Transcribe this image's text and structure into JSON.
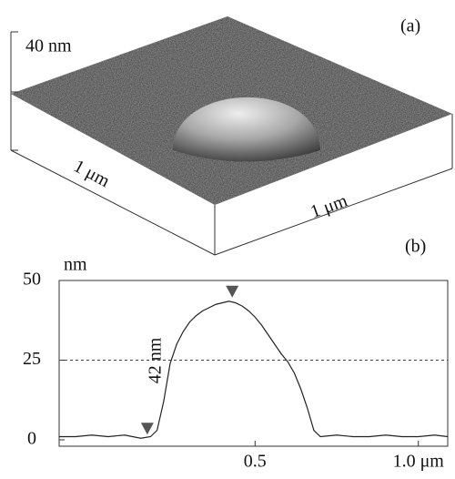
{
  "panel_a": {
    "label": "(a)",
    "z_scale": "40 nm",
    "left_scale": "1 μm",
    "right_scale": "1 μm"
  },
  "chart_data": {
    "type": "line",
    "panel_label": "(b)",
    "y_label": "nm",
    "annotation": "42 nm",
    "x": [
      -0.1,
      -0.05,
      0,
      0.05,
      0.1,
      0.15,
      0.18,
      0.2,
      0.22,
      0.24,
      0.26,
      0.28,
      0.3,
      0.32,
      0.34,
      0.36,
      0.38,
      0.4,
      0.42,
      0.44,
      0.46,
      0.48,
      0.5,
      0.52,
      0.54,
      0.56,
      0.58,
      0.6,
      0.62,
      0.64,
      0.66,
      0.68,
      0.7,
      0.75,
      0.8,
      0.85,
      0.9,
      0.95,
      1.0,
      1.05,
      1.09
    ],
    "series": [
      {
        "color": "#222222",
        "values": [
          1,
          1,
          1.5,
          1,
          1.5,
          0.5,
          1,
          3,
          12,
          24,
          30,
          34,
          37,
          39,
          40.5,
          41.5,
          42.5,
          43,
          43.5,
          43,
          42,
          40.5,
          38.5,
          36,
          33,
          30,
          27,
          24.5,
          21,
          16,
          10,
          3,
          1,
          1.5,
          1,
          1,
          1.5,
          1,
          1,
          1.5,
          1
        ]
      }
    ],
    "markers": {
      "x": [
        0.17,
        0.43
      ],
      "y": [
        0.5,
        43.5
      ],
      "color": "#555555"
    },
    "reference_line": 25,
    "xlim": [
      -0.1,
      1.09
    ],
    "ylim": [
      -2,
      50
    ],
    "xticks": [
      0.5,
      {
        "value": 1.0,
        "label": "1.0 μm"
      }
    ],
    "yticks": [
      0,
      25,
      50
    ]
  }
}
